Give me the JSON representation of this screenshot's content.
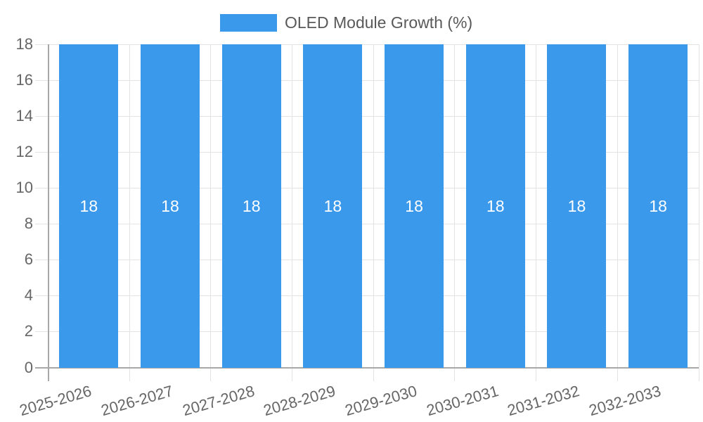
{
  "chart_data": {
    "type": "bar",
    "title": "",
    "legend": {
      "position": "top",
      "label": "OLED Module Growth (%)"
    },
    "categories": [
      "2025-2026",
      "2026-2027",
      "2027-2028",
      "2028-2029",
      "2029-2030",
      "2030-2031",
      "2031-2032",
      "2032-2033"
    ],
    "series": [
      {
        "name": "OLED Module Growth (%)",
        "values": [
          18,
          18,
          18,
          18,
          18,
          18,
          18,
          18
        ],
        "color": "#3b99ec",
        "value_label_color": "#ffffff"
      }
    ],
    "bar_value_labels": [
      "18",
      "18",
      "18",
      "18",
      "18",
      "18",
      "18",
      "18"
    ],
    "xlabel": "",
    "ylabel": "",
    "ylim": [
      0,
      18
    ],
    "yticks": [
      0,
      2,
      4,
      6,
      8,
      10,
      12,
      14,
      16,
      18
    ],
    "grid": true,
    "x_label_rotation_deg": -16,
    "colors": {
      "grid": "#e3e3e3",
      "axis": "#a8a8a8",
      "tick_label": "#666666",
      "legend_label": "#595959",
      "background": "#ffffff"
    }
  }
}
